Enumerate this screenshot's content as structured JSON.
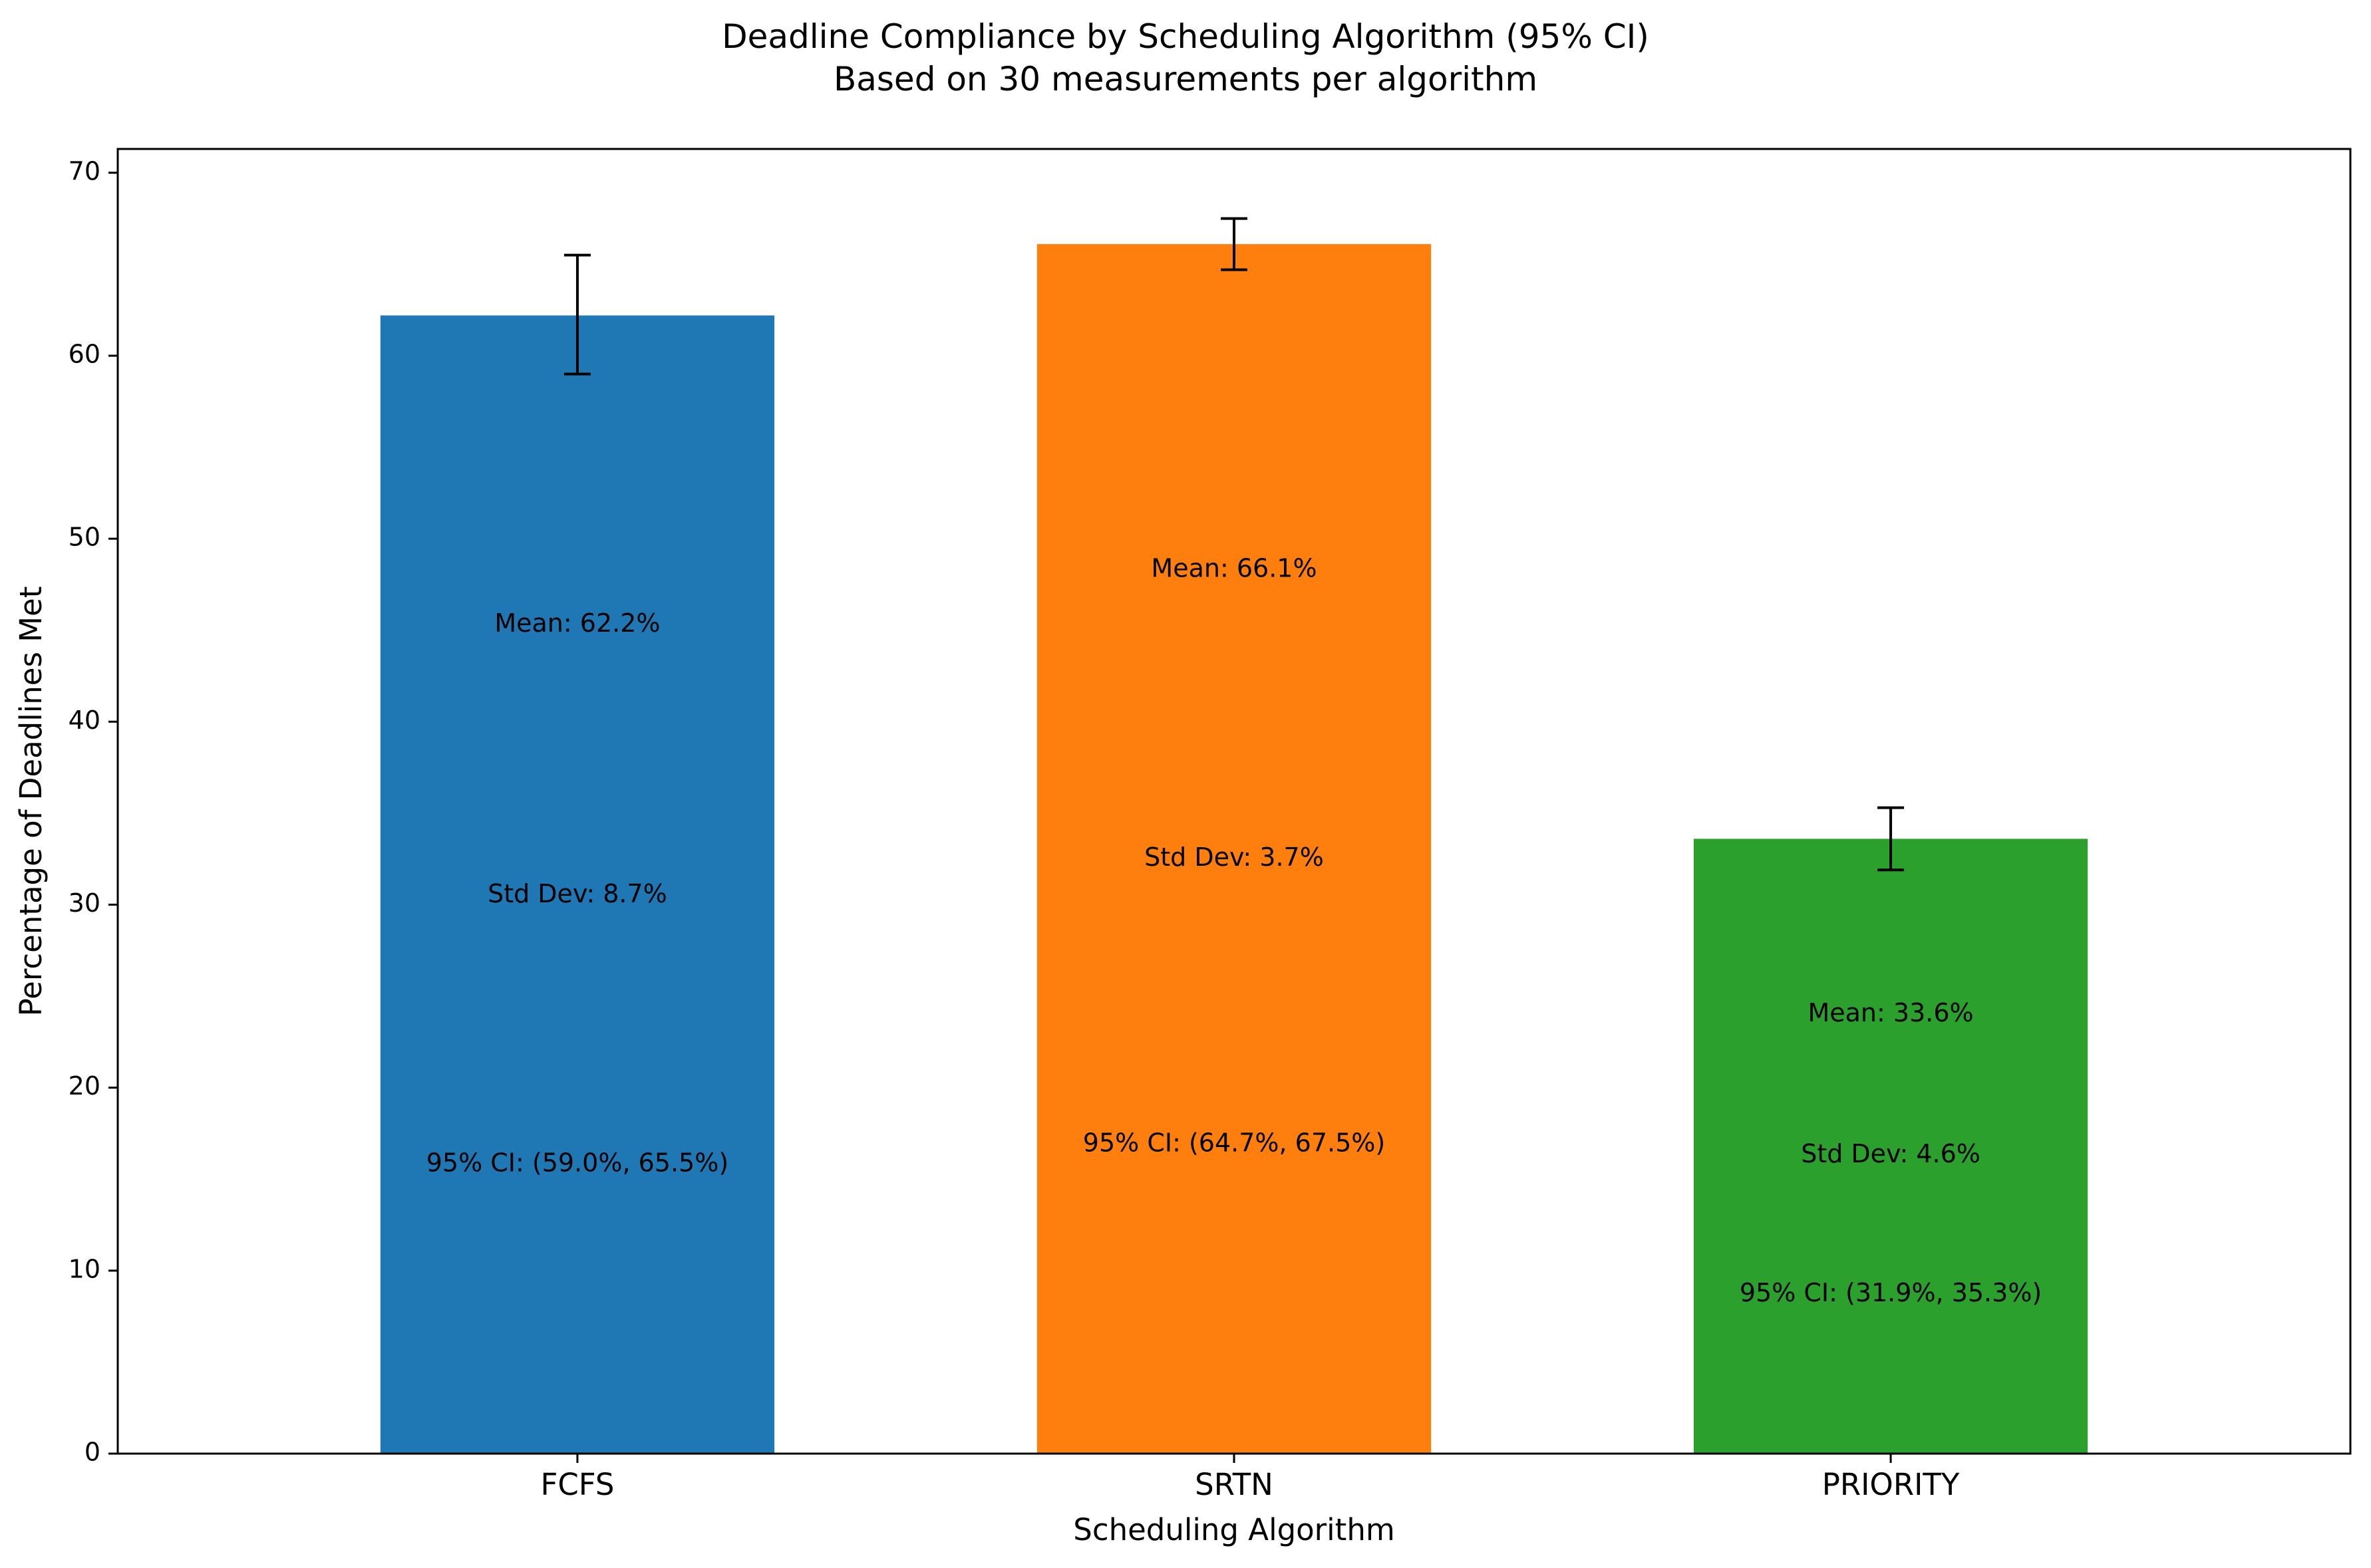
{
  "chart_data": {
    "type": "bar",
    "title": "Deadline Compliance by Scheduling Algorithm (95% CI)",
    "subtitle": "Based on 30 measurements per algorithm",
    "xlabel": "Scheduling Algorithm",
    "ylabel": "Percentage of Deadlines Met",
    "categories": [
      "FCFS",
      "SRTN",
      "PRIORITY"
    ],
    "values": [
      62.2,
      66.1,
      33.6
    ],
    "ci_low": [
      59.0,
      64.7,
      31.9
    ],
    "ci_high": [
      65.5,
      67.5,
      35.3
    ],
    "colors": [
      "#1f77b4",
      "#ff7f0e",
      "#2ca02c"
    ],
    "ylim": [
      0,
      71.3
    ],
    "yticks": [
      0,
      10,
      20,
      30,
      40,
      50,
      60,
      70
    ],
    "grid": false,
    "annotations": [
      [
        {
          "text": "Mean: 62.2%",
          "y": 45.3
        },
        {
          "text": "Std Dev: 8.7%",
          "y": 30.5
        },
        {
          "text": "95% CI: (59.0%, 65.5%)",
          "y": 15.8
        }
      ],
      [
        {
          "text": "Mean: 66.1%",
          "y": 48.3
        },
        {
          "text": "Std Dev: 3.7%",
          "y": 32.5
        },
        {
          "text": "95% CI: (64.7%, 67.5%)",
          "y": 16.9
        }
      ],
      [
        {
          "text": "Mean: 33.6%",
          "y": 24.0
        },
        {
          "text": "Std Dev: 4.6%",
          "y": 16.3
        },
        {
          "text": "95% CI: (31.9%, 35.3%)",
          "y": 8.7
        }
      ]
    ]
  }
}
